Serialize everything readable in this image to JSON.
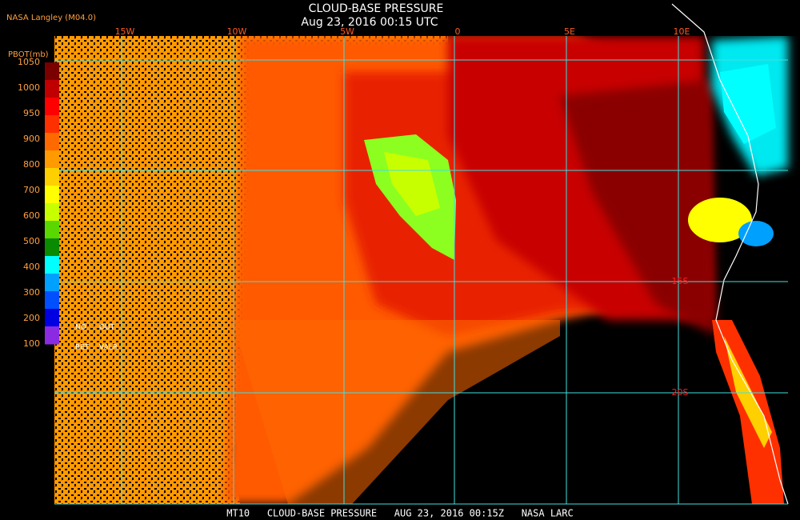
{
  "header": {
    "title": "CLOUD-BASE PRESSURE",
    "subtitle": "Aug 23, 2016 00:15 UTC",
    "credit": "NASA Langley (M04.0)"
  },
  "colorbar": {
    "label": "PBOT(mb)",
    "ticks": [
      "1050",
      "1000",
      "950",
      "900",
      "800",
      "700",
      "600",
      "500",
      "400",
      "300",
      "200",
      "100"
    ],
    "colors": [
      "#7a0000",
      "#c00000",
      "#ff0000",
      "#ff3000",
      "#ff6a00",
      "#ff9a00",
      "#ffd000",
      "#ffff00",
      "#c8ff00",
      "#5ad600",
      "#0a8a00",
      "#00ffff",
      "#00a0ff",
      "#0050ff",
      "#0000e0",
      "#8a2be2"
    ],
    "no": "NO",
    "out": "OUT",
    "ret": "RET",
    "valr": "VALR"
  },
  "grid": {
    "lon_labels": [
      "15W",
      "10W",
      "5W",
      "0",
      "5E",
      "10E"
    ],
    "lat_labels": [
      "15S",
      "20S"
    ]
  },
  "footer": "MT10   CLOUD-BASE PRESSURE   AUG 23, 2016 00:15Z   NASA LARC"
}
